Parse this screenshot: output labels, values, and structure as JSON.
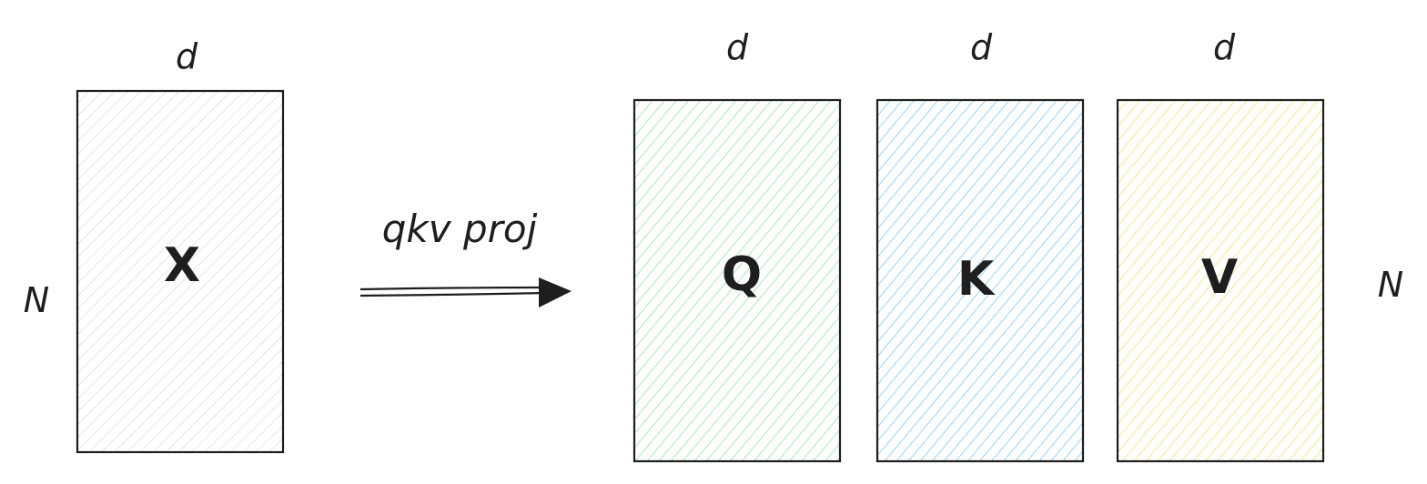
{
  "diagram": {
    "input_matrix": {
      "label": "X",
      "width_label": "d",
      "height_label": "N",
      "fill": "#d9d9d9"
    },
    "arrow": {
      "label": "qkv proj"
    },
    "output_matrices": [
      {
        "label": "Q",
        "width_label": "d",
        "fill": "#8fe39e"
      },
      {
        "label": "K",
        "width_label": "d",
        "fill": "#7cc4f2"
      },
      {
        "label": "V",
        "width_label": "d",
        "fill": "#f5dc6a"
      }
    ],
    "output_height_label": "N",
    "stroke": "#1e1e1e"
  }
}
